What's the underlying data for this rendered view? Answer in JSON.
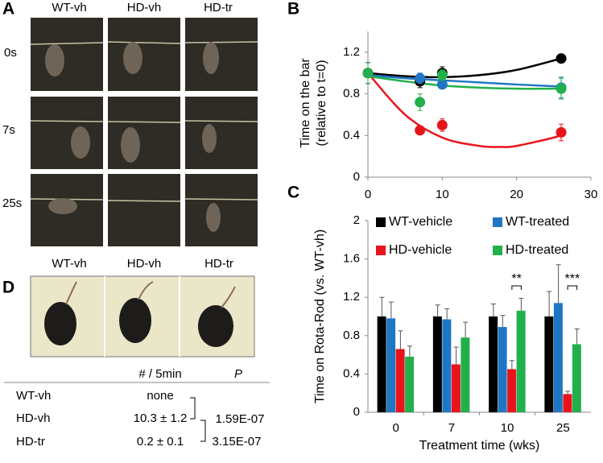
{
  "panel_labels": [
    "A",
    "B",
    "C",
    "D"
  ],
  "photo_panel": {
    "columns": [
      "WT-vh",
      "HD-vh",
      "HD-tr"
    ],
    "rows": [
      "0s",
      "7s",
      "25s"
    ]
  },
  "photo_strip": {
    "columns": [
      "WT-vh",
      "HD-vh",
      "HD-tr"
    ]
  },
  "table": {
    "header": {
      "count": "# / 5min",
      "p": "P"
    },
    "rows": [
      [
        "WT-vh",
        "none"
      ],
      [
        "HD-vh",
        "10.3 ± 1.2"
      ],
      [
        "HD-tr",
        "0.2 ± 0.1"
      ]
    ],
    "p_values": [
      "1.59E-07",
      "3.15E-07"
    ]
  },
  "chart_data": [
    {
      "type": "scatter",
      "y_label": [
        "Time on the bar",
        "(relative to t=0)"
      ],
      "xlim": [
        0,
        30
      ],
      "xticks": [
        0,
        10,
        20,
        30
      ],
      "ylim": [
        0,
        1.4
      ],
      "yticks": [
        0,
        0.4,
        0.8,
        1.2
      ],
      "series": [
        {
          "color": "#000000",
          "x": [
            0,
            7,
            10,
            26
          ],
          "values": [
            1.0,
            0.92,
            1.0,
            1.14
          ],
          "errors": [
            0.1,
            0.06,
            0.06,
            0.03
          ],
          "fit": {
            "x": [
              0,
              5,
              10,
              15,
              20,
              26
            ],
            "values": [
              1.0,
              0.97,
              0.96,
              0.98,
              1.03,
              1.14
            ]
          }
        },
        {
          "color": "#1f77c4",
          "x": [
            0,
            7,
            10,
            26
          ],
          "values": [
            1.0,
            0.95,
            0.89,
            0.86
          ],
          "errors": [
            0.1,
            0.05,
            0.04,
            0.1
          ],
          "fit": {
            "x": [
              0,
              5,
              10,
              15,
              20,
              26
            ],
            "values": [
              0.98,
              0.95,
              0.93,
              0.91,
              0.89,
              0.87
            ]
          }
        },
        {
          "color": "#e8141c",
          "x": [
            0,
            7,
            10,
            26
          ],
          "values": [
            1.0,
            0.45,
            0.5,
            0.43
          ],
          "errors": [
            0.1,
            0.04,
            0.06,
            0.08
          ],
          "fit": {
            "x": [
              0,
              5,
              10,
              15,
              18,
              20,
              25,
              26
            ],
            "values": [
              1.0,
              0.6,
              0.38,
              0.3,
              0.29,
              0.3,
              0.38,
              0.41
            ]
          }
        },
        {
          "color": "#22b04c",
          "x": [
            0,
            7,
            10,
            26
          ],
          "values": [
            1.0,
            0.72,
            0.98,
            0.85
          ],
          "errors": [
            0.1,
            0.08,
            0.05,
            0.1
          ],
          "fit": {
            "x": [
              0,
              5,
              10,
              15,
              20,
              26
            ],
            "values": [
              0.97,
              0.92,
              0.88,
              0.86,
              0.85,
              0.85
            ]
          }
        }
      ]
    },
    {
      "type": "bar",
      "y_label": "Time on Rota-Rod (vs. WT-vh)",
      "x_label": "Treatment time (wks)",
      "categories": [
        "0",
        "7",
        "10",
        "25"
      ],
      "ylim": [
        0,
        2
      ],
      "yticks": [
        0,
        0.4,
        0.8,
        1.2,
        1.6,
        2
      ],
      "series": [
        {
          "name": "WT-vehicle",
          "color": "#000000",
          "values": [
            1.0,
            1.0,
            1.0,
            1.0
          ],
          "errors": [
            0.2,
            0.12,
            0.13,
            0.26
          ]
        },
        {
          "name": "WT-treated",
          "color": "#1f77c4",
          "values": [
            0.98,
            0.97,
            0.89,
            1.14
          ],
          "errors": [
            0.17,
            0.11,
            0.12,
            0.4
          ]
        },
        {
          "name": "HD-vehicle",
          "color": "#e8141c",
          "values": [
            0.66,
            0.5,
            0.45,
            0.19
          ],
          "errors": [
            0.19,
            0.18,
            0.09,
            0.03
          ]
        },
        {
          "name": "HD-treated",
          "color": "#22b04c",
          "values": [
            0.58,
            0.78,
            1.06,
            0.71
          ],
          "errors": [
            0.11,
            0.16,
            0.13,
            0.16
          ]
        }
      ],
      "annotations": [
        {
          "text": "**",
          "category": "10"
        },
        {
          "text": "***",
          "category": "25"
        }
      ]
    }
  ]
}
